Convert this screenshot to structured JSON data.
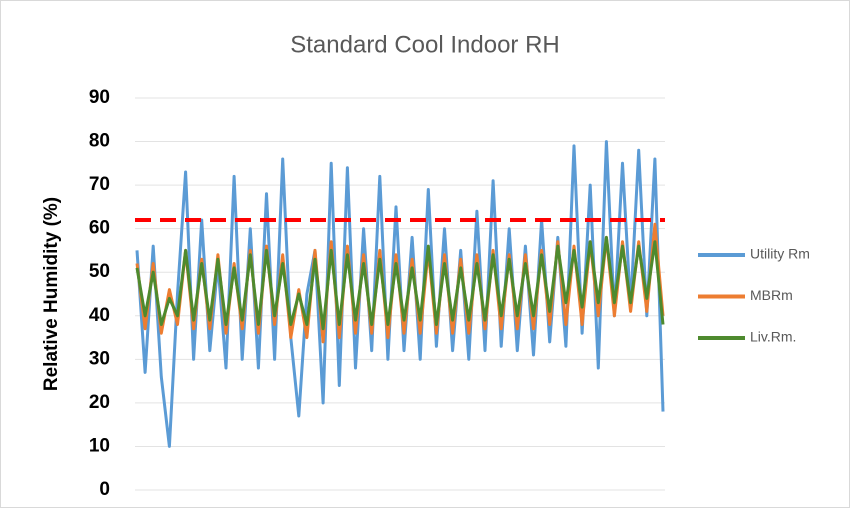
{
  "chart_data": {
    "type": "line",
    "title": "Standard Cool Indoor RH",
    "y_label": "Relative Humidity (%)",
    "ylim": [
      0,
      90
    ],
    "yticks": [
      0,
      10,
      20,
      30,
      40,
      50,
      60,
      70,
      80,
      90
    ],
    "grid": true,
    "legend": "right",
    "reference_line": {
      "value": 62,
      "color": "#ff0000"
    },
    "series": [
      {
        "name": "Utility Rm",
        "color": "#5b9bd5",
        "values": [
          55,
          27,
          56,
          26,
          10,
          45,
          73,
          30,
          62,
          32,
          52,
          28,
          72,
          30,
          60,
          28,
          68,
          30,
          76,
          35,
          17,
          45,
          55,
          20,
          75,
          24,
          74,
          28,
          60,
          32,
          72,
          30,
          65,
          32,
          58,
          30,
          69,
          33,
          60,
          32,
          55,
          30,
          64,
          32,
          71,
          33,
          60,
          32,
          56,
          31,
          62,
          34,
          58,
          33,
          79,
          36,
          70,
          28,
          80,
          40,
          75,
          42,
          78,
          40,
          76,
          18
        ]
      },
      {
        "name": "MBRm",
        "color": "#ed7d31",
        "values": [
          52,
          37,
          52,
          36,
          46,
          38,
          55,
          37,
          53,
          37,
          54,
          36,
          52,
          37,
          55,
          36,
          56,
          38,
          54,
          35,
          46,
          35,
          55,
          34,
          57,
          35,
          56,
          36,
          54,
          36,
          55,
          35,
          54,
          36,
          53,
          36,
          55,
          36,
          54,
          36,
          53,
          36,
          54,
          37,
          55,
          37,
          54,
          37,
          54,
          37,
          55,
          38,
          57,
          38,
          56,
          38,
          57,
          40,
          58,
          40,
          57,
          41,
          57,
          41,
          61,
          40
        ]
      },
      {
        "name": "Liv.Rm.",
        "color": "#4e8a2e",
        "values": [
          51,
          40,
          50,
          38,
          44,
          40,
          55,
          39,
          52,
          39,
          53,
          38,
          51,
          39,
          54,
          38,
          55,
          40,
          52,
          38,
          45,
          38,
          53,
          37,
          55,
          38,
          54,
          39,
          52,
          38,
          53,
          38,
          52,
          39,
          51,
          39,
          56,
          38,
          52,
          39,
          51,
          39,
          52,
          39,
          54,
          40,
          53,
          40,
          52,
          40,
          54,
          41,
          56,
          43,
          55,
          42,
          57,
          43,
          58,
          43,
          56,
          43,
          56,
          44,
          57,
          38
        ]
      }
    ]
  }
}
